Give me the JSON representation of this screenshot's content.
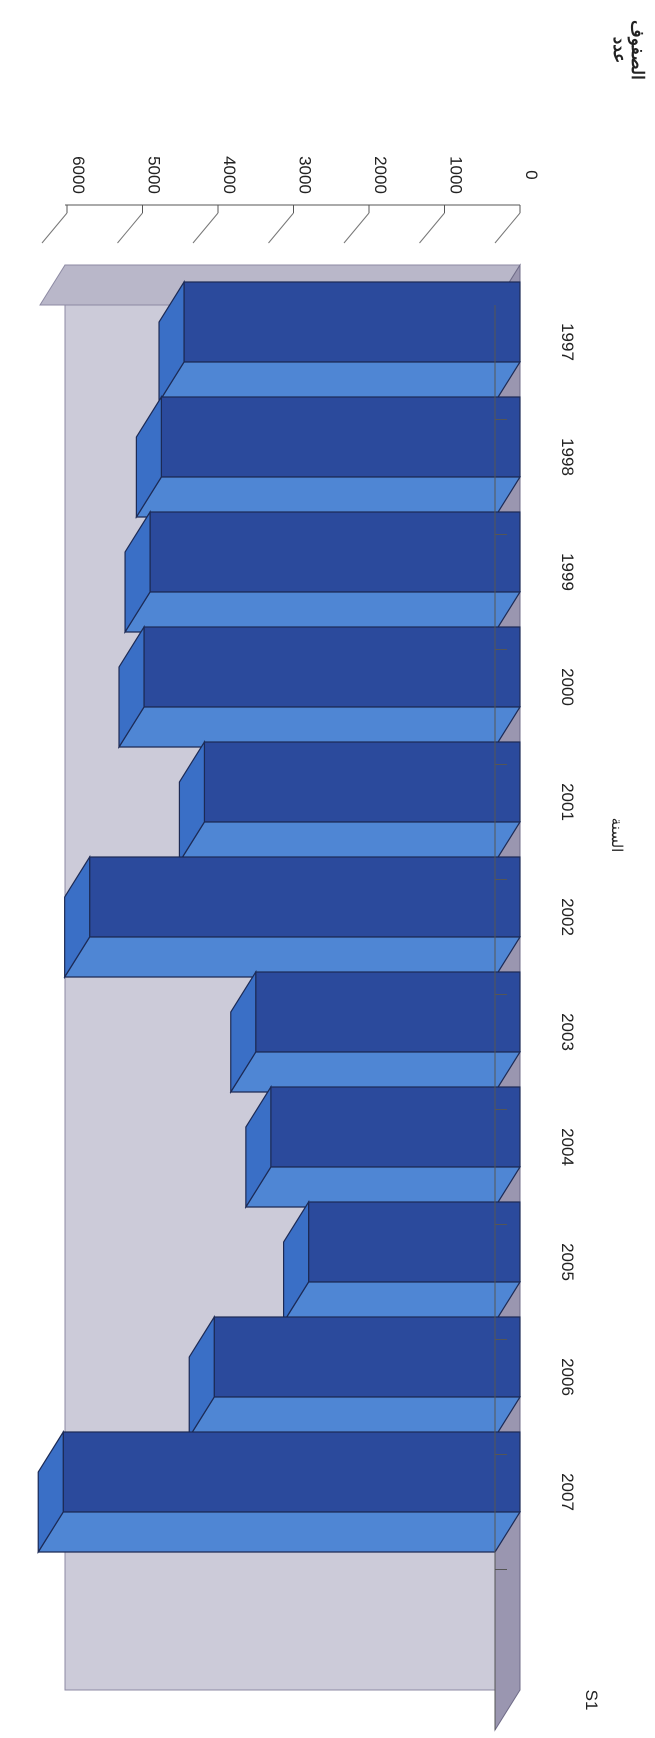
{
  "chart_data": {
    "type": "bar",
    "orientation": "rotated-90-clockwise",
    "style": "3d",
    "categories": [
      "1997",
      "1998",
      "1999",
      "2000",
      "2001",
      "2002",
      "2003",
      "2004",
      "2005",
      "2006",
      "2007"
    ],
    "series": [
      {
        "name": "S1",
        "values": [
          4450,
          4750,
          4900,
          4980,
          4180,
          5700,
          3500,
          3300,
          2800,
          4050,
          6050
        ]
      }
    ],
    "xlabel": "السنة",
    "ylabel_line1": "عدد",
    "ylabel_line2": "الصفوف",
    "yticks": [
      "0",
      "1000",
      "2000",
      "3000",
      "4000",
      "5000",
      "6000"
    ],
    "ylim": [
      0,
      6000
    ],
    "grid": false,
    "colors": {
      "bar_front": "#2b4a9c",
      "bar_side": "#4f86d4",
      "bar_top": "#3a6fc6",
      "wall": "#cccbd9",
      "floor": "#9a96b0",
      "outline": "#1c2a55"
    }
  }
}
